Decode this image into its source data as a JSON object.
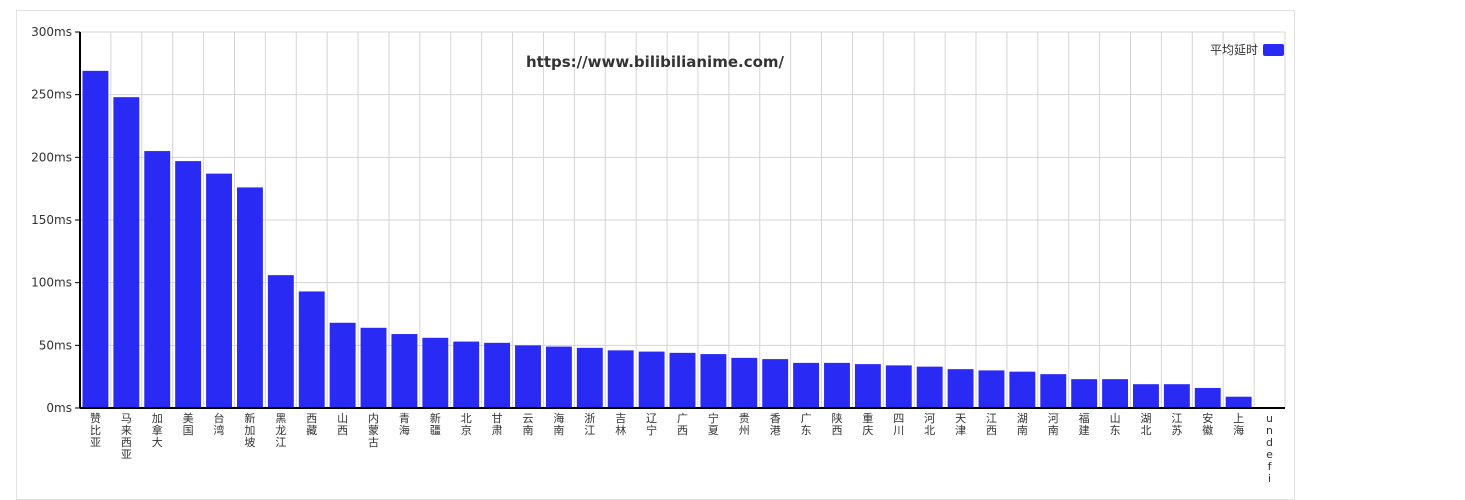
{
  "chart_data": {
    "type": "bar",
    "title": "https://www.bilibilianime.com/",
    "xlabel": "",
    "ylabel": "",
    "ylim": [
      0,
      300
    ],
    "yticks": [
      "0ms",
      "50ms",
      "100ms",
      "150ms",
      "200ms",
      "250ms",
      "300ms"
    ],
    "grid": true,
    "legend_position": "top-right",
    "bar_color": "#2a2af5",
    "categories": [
      "赞比亚",
      "马来西亚",
      "加拿大",
      "美国",
      "台湾",
      "新加坡",
      "黑龙江",
      "西藏",
      "山西",
      "内蒙古",
      "青海",
      "新疆",
      "北京",
      "甘肃",
      "云南",
      "海南",
      "浙江",
      "吉林",
      "辽宁",
      "广西",
      "宁夏",
      "贵州",
      "香港",
      "广东",
      "陕西",
      "重庆",
      "四川",
      "河北",
      "天津",
      "江西",
      "湖南",
      "河南",
      "福建",
      "山东",
      "湖北",
      "江苏",
      "安徽",
      "上海",
      "undefi"
    ],
    "series": [
      {
        "name": "平均延时",
        "values": [
          269,
          248,
          205,
          197,
          187,
          176,
          106,
          93,
          68,
          64,
          59,
          56,
          53,
          52,
          50,
          49,
          48,
          46,
          45,
          44,
          43,
          40,
          39,
          36,
          36,
          35,
          34,
          33,
          31,
          30,
          29,
          27,
          23,
          23,
          19,
          19,
          16,
          9,
          0
        ]
      }
    ]
  }
}
